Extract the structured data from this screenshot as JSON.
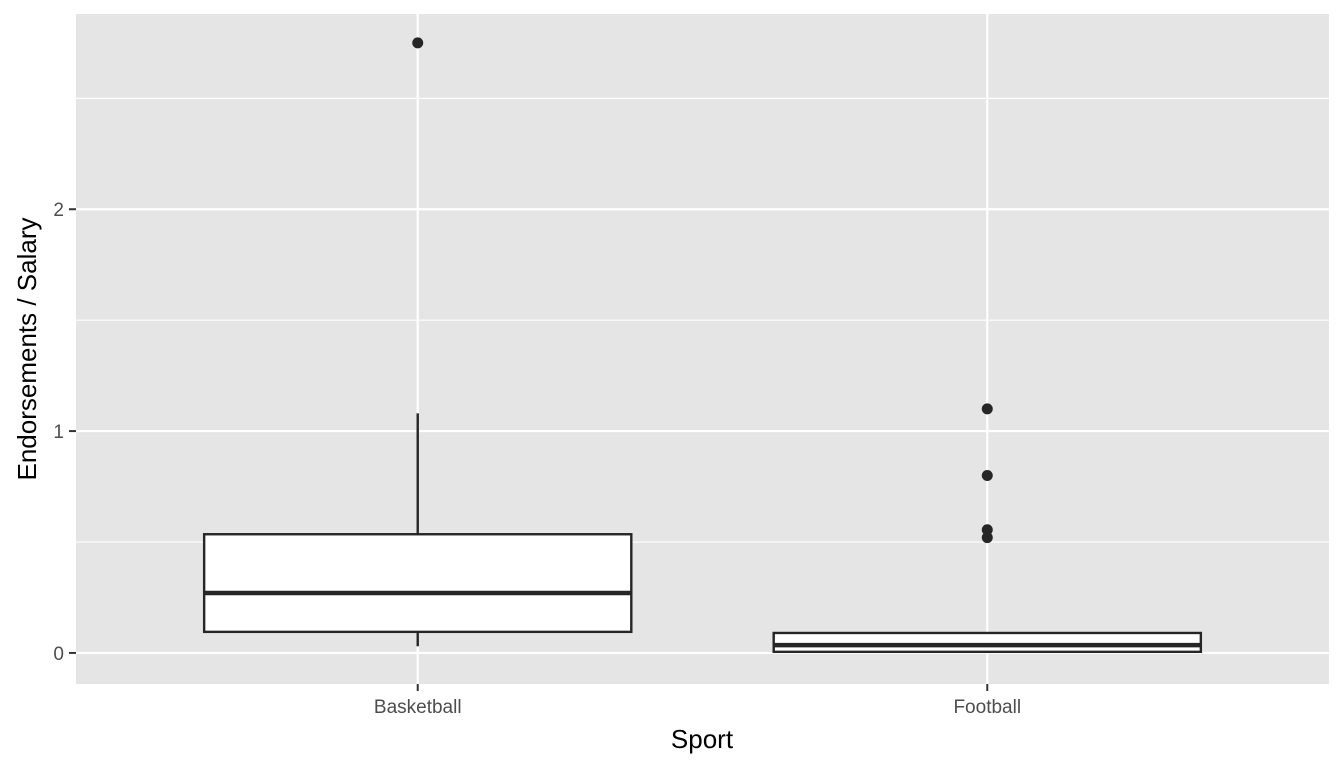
{
  "chart_data": {
    "type": "boxplot",
    "xlabel": "Sport",
    "ylabel": "Endorsements / Salary",
    "categories": [
      "Basketball",
      "Football"
    ],
    "ylim": [
      -0.14,
      2.88
    ],
    "yticks": [
      0,
      1,
      2
    ],
    "boxes": [
      {
        "category": "Basketball",
        "whisker_low": 0.03,
        "q1": 0.095,
        "median": 0.27,
        "q3": 0.535,
        "whisker_high": 1.08,
        "outliers": [
          2.75
        ]
      },
      {
        "category": "Football",
        "whisker_low": 0.0,
        "q1": 0.005,
        "median": 0.035,
        "q3": 0.09,
        "whisker_high": 0.09,
        "outliers": [
          1.1,
          0.8,
          0.555,
          0.52
        ]
      }
    ],
    "panel_background": "#e5e5e5",
    "grid": true,
    "grid_color": "#ffffff",
    "box_fill": "#ffffff",
    "line_color": "#262626",
    "tick_color": "#333333"
  }
}
